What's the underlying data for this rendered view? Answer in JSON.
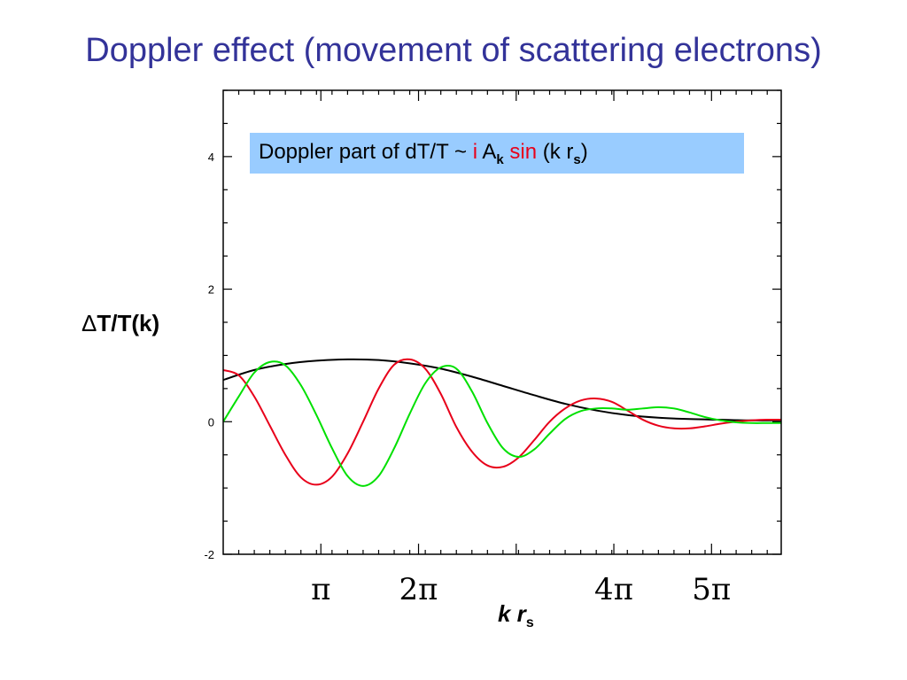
{
  "title": "Doppler effect (movement of scattering electrons)",
  "annotation": {
    "prefix": "Doppler part of dT/T ~ ",
    "i": "i",
    "A": " A",
    "k_sub": "k",
    "sin": "sin",
    "arg_open": " (k r",
    "s_sub": "s",
    "arg_close": ")"
  },
  "ylabel": {
    "delta": "Δ",
    "text": "T/T(k)"
  },
  "xlabel": {
    "main": "k r",
    "sub": "s"
  },
  "colors": {
    "title": "#333399",
    "annotation_bg": "#99ccff",
    "black_curve": "#000000",
    "red_curve": "#e8001a",
    "green_curve": "#00e000"
  },
  "chart_data": {
    "type": "line",
    "xlim": [
      0,
      17.95
    ],
    "ylim": [
      -2,
      5
    ],
    "yticks": [
      {
        "value": -2,
        "label": "-2"
      },
      {
        "value": 0,
        "label": "0"
      },
      {
        "value": 2,
        "label": "2"
      },
      {
        "value": 4,
        "label": "4"
      }
    ],
    "xticks": [
      {
        "value": 3.1416,
        "label": "π"
      },
      {
        "value": 6.2832,
        "label": "2π"
      },
      {
        "value": 12.566,
        "label": "4π"
      },
      {
        "value": 15.708,
        "label": "5π"
      }
    ],
    "series": [
      {
        "color": "black",
        "x": [
          0,
          1,
          2,
          3,
          4,
          5,
          6,
          7,
          8,
          9,
          10,
          11,
          12,
          13,
          14,
          15,
          16,
          17,
          17.95
        ],
        "y": [
          0.63,
          0.78,
          0.87,
          0.92,
          0.94,
          0.93,
          0.88,
          0.8,
          0.68,
          0.54,
          0.4,
          0.27,
          0.17,
          0.1,
          0.06,
          0.04,
          0.03,
          0.02,
          0.02
        ]
      },
      {
        "color": "red",
        "x": [
          0,
          0.5,
          1,
          1.5,
          2,
          2.5,
          3,
          3.5,
          4,
          4.5,
          5,
          5.5,
          6,
          6.5,
          7,
          7.5,
          8,
          8.5,
          9,
          9.5,
          10,
          10.5,
          11,
          11.5,
          12,
          12.5,
          13,
          13.5,
          14,
          14.5,
          15,
          15.5,
          16,
          16.5,
          17,
          17.5,
          17.95
        ],
        "y": [
          0.78,
          0.7,
          0.38,
          -0.06,
          -0.5,
          -0.84,
          -0.95,
          -0.83,
          -0.48,
          0.0,
          0.5,
          0.86,
          0.94,
          0.8,
          0.42,
          -0.08,
          -0.45,
          -0.66,
          -0.68,
          -0.54,
          -0.28,
          0.0,
          0.2,
          0.32,
          0.35,
          0.3,
          0.17,
          0.03,
          -0.06,
          -0.1,
          -0.1,
          -0.07,
          -0.03,
          0.0,
          0.02,
          0.03,
          0.03
        ]
      },
      {
        "color": "green",
        "x": [
          0,
          0.5,
          1,
          1.5,
          2,
          2.5,
          3,
          3.5,
          4,
          4.5,
          5,
          5.5,
          6,
          6.5,
          7,
          7.5,
          8,
          8.5,
          9,
          9.5,
          10,
          10.5,
          11,
          11.5,
          12,
          12.5,
          13,
          13.5,
          14,
          14.5,
          15,
          15.5,
          16,
          16.5,
          17,
          17.5,
          17.95
        ],
        "y": [
          0.0,
          0.38,
          0.74,
          0.9,
          0.85,
          0.55,
          0.1,
          -0.4,
          -0.82,
          -0.97,
          -0.82,
          -0.4,
          0.12,
          0.58,
          0.82,
          0.8,
          0.46,
          -0.02,
          -0.4,
          -0.53,
          -0.42,
          -0.18,
          0.04,
          0.16,
          0.2,
          0.2,
          0.18,
          0.2,
          0.22,
          0.2,
          0.14,
          0.07,
          0.02,
          -0.01,
          -0.02,
          -0.02,
          -0.02
        ]
      }
    ]
  }
}
